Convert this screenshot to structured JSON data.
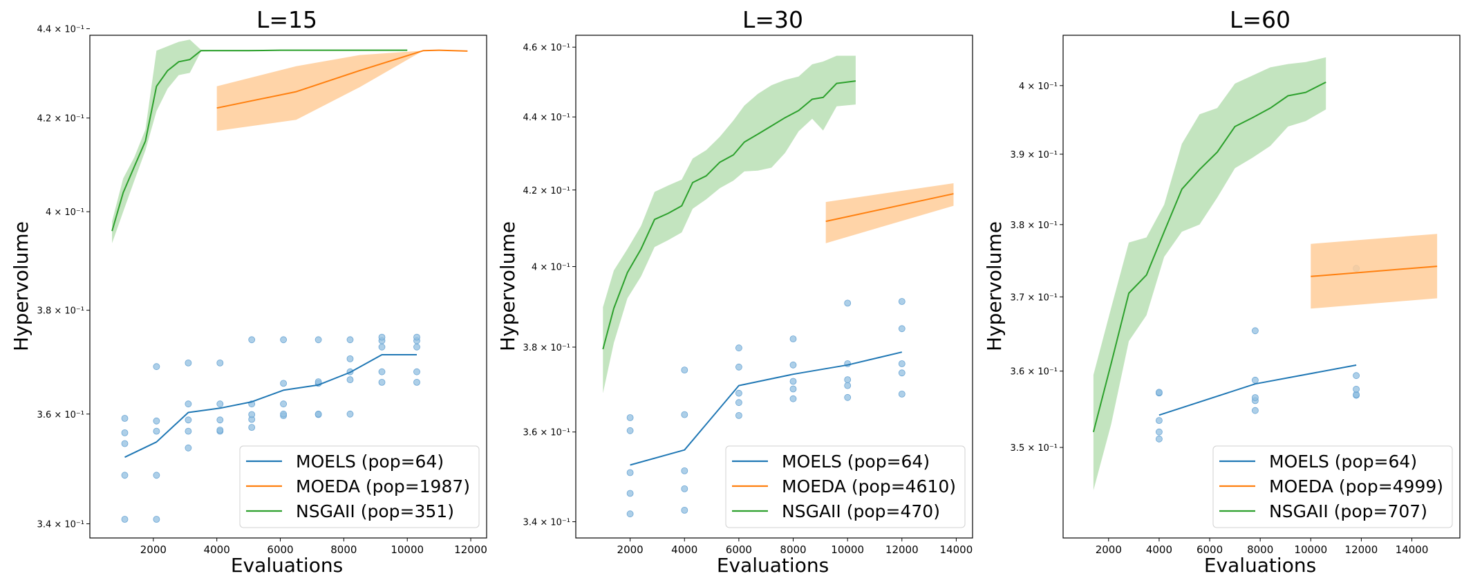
{
  "colors": {
    "moels": "#1f77b4",
    "moeda": "#ff7f0e",
    "nsgaii": "#2ca02c",
    "moeda_band": "#ffcc99",
    "nsgaii_band": "#b9dfb4",
    "moels_points": "#92bfe0"
  },
  "chart_data": [
    {
      "type": "line",
      "title": "L=15",
      "xlabel": "Evaluations",
      "ylabel": "Hypervolume",
      "yscale": "log",
      "xlim": [
        0,
        12500
      ],
      "ylim": [
        0.3375,
        0.4385
      ],
      "xticks": [
        2000,
        4000,
        6000,
        8000,
        10000,
        12000
      ],
      "xtick_labels": [
        "2000",
        "4000",
        "6000",
        "8000",
        "10000",
        "12000"
      ],
      "yticks": [
        0.34,
        0.36,
        0.38,
        0.4,
        0.42,
        0.44
      ],
      "ytick_labels": [
        "3.4 × 10⁻¹",
        "3.6 × 10⁻¹",
        "3.8 × 10⁻¹",
        "4 × 10⁻¹",
        "4.2 × 10⁻¹",
        "4.4 × 10⁻¹"
      ],
      "grid": false,
      "legend_position": "lower-right",
      "legend": [
        "MOELS (pop=64)",
        "MOEDA (pop=1987)",
        "NSGAII (pop=351)"
      ],
      "series": [
        {
          "name": "MOELS (pop=64)",
          "color": "#1f77b4",
          "x": [
            1100,
            2100,
            3100,
            4100,
            5100,
            6100,
            7200,
            8200,
            9200,
            10300
          ],
          "y": [
            0.352,
            0.3548,
            0.3603,
            0.3611,
            0.3623,
            0.3645,
            0.3655,
            0.3679,
            0.3713,
            0.3713
          ],
          "points": [
            [
              1100,
              0.3408
            ],
            [
              1100,
              0.3487
            ],
            [
              1100,
              0.3545
            ],
            [
              1100,
              0.3565
            ],
            [
              1100,
              0.3592
            ],
            [
              2100,
              0.3408
            ],
            [
              2100,
              0.3487
            ],
            [
              2100,
              0.3568
            ],
            [
              2100,
              0.3587
            ],
            [
              2100,
              0.369
            ],
            [
              3100,
              0.3537
            ],
            [
              3100,
              0.3568
            ],
            [
              3100,
              0.3589
            ],
            [
              3100,
              0.3619
            ],
            [
              3100,
              0.3697
            ],
            [
              4100,
              0.3568
            ],
            [
              4100,
              0.357
            ],
            [
              4100,
              0.3589
            ],
            [
              4100,
              0.3619
            ],
            [
              4100,
              0.3697
            ],
            [
              5100,
              0.3575
            ],
            [
              5100,
              0.359
            ],
            [
              5100,
              0.3599
            ],
            [
              5100,
              0.3619
            ],
            [
              5100,
              0.3742
            ],
            [
              6100,
              0.3597
            ],
            [
              6100,
              0.36
            ],
            [
              6100,
              0.3619
            ],
            [
              6100,
              0.3658
            ],
            [
              6100,
              0.3742
            ],
            [
              7200,
              0.3599
            ],
            [
              7200,
              0.36
            ],
            [
              7200,
              0.3658
            ],
            [
              7200,
              0.3661
            ],
            [
              7200,
              0.3742
            ],
            [
              8200,
              0.36
            ],
            [
              8200,
              0.3665
            ],
            [
              8200,
              0.368
            ],
            [
              8200,
              0.3705
            ],
            [
              8200,
              0.3742
            ],
            [
              9200,
              0.366
            ],
            [
              9200,
              0.368
            ],
            [
              9200,
              0.3728
            ],
            [
              9200,
              0.374
            ],
            [
              9200,
              0.3747
            ],
            [
              10300,
              0.366
            ],
            [
              10300,
              0.368
            ],
            [
              10300,
              0.3728
            ],
            [
              10300,
              0.374
            ],
            [
              10300,
              0.3747
            ]
          ]
        },
        {
          "name": "MOEDA (pop=1987)",
          "color": "#ff7f0e",
          "x": [
            4000,
            6500,
            8500,
            10500,
            11000,
            11900
          ],
          "y": [
            0.4222,
            0.4258,
            0.4305,
            0.435,
            0.4351,
            0.4349
          ],
          "lower": [
            0.4172,
            0.4196,
            0.4268,
            0.435,
            0.4351,
            0.4349
          ],
          "upper": [
            0.427,
            0.4315,
            0.434,
            0.435,
            0.4351,
            0.4349
          ]
        },
        {
          "name": "NSGAII (pop=351)",
          "color": "#2ca02c",
          "x": [
            700,
            1050,
            1400,
            1750,
            2100,
            2450,
            2800,
            3150,
            3500,
            3850,
            4200,
            5000,
            6000,
            7000,
            8000,
            9000,
            10000
          ],
          "y": [
            0.396,
            0.404,
            0.4095,
            0.415,
            0.427,
            0.4305,
            0.4325,
            0.433,
            0.435,
            0.435,
            0.435,
            0.435,
            0.4351,
            0.4351,
            0.4351,
            0.4351,
            0.4351
          ],
          "lower": [
            0.3935,
            0.4,
            0.4065,
            0.413,
            0.4215,
            0.4265,
            0.4295,
            0.43,
            0.4348,
            0.4349,
            0.4349,
            0.4349,
            0.435,
            0.435,
            0.435,
            0.435,
            0.435
          ],
          "upper": [
            0.398,
            0.407,
            0.4115,
            0.4175,
            0.435,
            0.436,
            0.437,
            0.4375,
            0.4352,
            0.4352,
            0.4352,
            0.4352,
            0.4352,
            0.4352,
            0.4352,
            0.4352,
            0.4352
          ]
        }
      ]
    },
    {
      "type": "line",
      "title": "L=30",
      "xlabel": "Evaluations",
      "ylabel": "Hypervolume",
      "yscale": "log",
      "xlim": [
        0,
        14600
      ],
      "ylim": [
        0.3365,
        0.4635
      ],
      "xticks": [
        2000,
        4000,
        6000,
        8000,
        10000,
        12000,
        14000
      ],
      "xtick_labels": [
        "2000",
        "4000",
        "6000",
        "8000",
        "10000",
        "12000",
        "14000"
      ],
      "yticks": [
        0.34,
        0.36,
        0.38,
        0.4,
        0.42,
        0.44,
        0.46
      ],
      "ytick_labels": [
        "3.4 × 10⁻¹",
        "3.6 × 10⁻¹",
        "3.8 × 10⁻¹",
        "4 × 10⁻¹",
        "4.2 × 10⁻¹",
        "4.4 × 10⁻¹",
        "4.6 × 10⁻¹"
      ],
      "grid": false,
      "legend_position": "lower-right",
      "legend": [
        "MOELS (pop=64)",
        "MOEDA (pop=4610)",
        "NSGAII (pop=470)"
      ],
      "series": [
        {
          "name": "MOELS (pop=64)",
          "color": "#1f77b4",
          "x": [
            2000,
            4000,
            6000,
            8000,
            10000,
            12000
          ],
          "y": [
            0.3525,
            0.3559,
            0.3708,
            0.3735,
            0.3757,
            0.3788
          ],
          "points": [
            [
              2000,
              0.3417
            ],
            [
              2000,
              0.3462
            ],
            [
              2000,
              0.3508
            ],
            [
              2000,
              0.3603
            ],
            [
              2000,
              0.3633
            ],
            [
              4000,
              0.3425
            ],
            [
              4000,
              0.3472
            ],
            [
              4000,
              0.3512
            ],
            [
              4000,
              0.364
            ],
            [
              4000,
              0.3745
            ],
            [
              6000,
              0.3638
            ],
            [
              6000,
              0.3668
            ],
            [
              6000,
              0.369
            ],
            [
              6000,
              0.3752
            ],
            [
              6000,
              0.3798
            ],
            [
              8000,
              0.3677
            ],
            [
              8000,
              0.37
            ],
            [
              8000,
              0.3718
            ],
            [
              8000,
              0.3757
            ],
            [
              8000,
              0.382
            ],
            [
              10000,
              0.368
            ],
            [
              10000,
              0.3708
            ],
            [
              10000,
              0.3722
            ],
            [
              10000,
              0.376
            ],
            [
              10000,
              0.3908
            ],
            [
              12000,
              0.3688
            ],
            [
              12000,
              0.3738
            ],
            [
              12000,
              0.376
            ],
            [
              12000,
              0.3845
            ],
            [
              12000,
              0.3912
            ]
          ]
        },
        {
          "name": "MOEDA (pop=4610)",
          "color": "#ff7f0e",
          "x": [
            9200,
            13900
          ],
          "y": [
            0.4117,
            0.419
          ],
          "lower": [
            0.406,
            0.4158
          ],
          "upper": [
            0.4168,
            0.4218
          ]
        },
        {
          "name": "NSGAII (pop=470)",
          "color": "#2ca02c",
          "x": [
            1000,
            1400,
            1900,
            2400,
            2900,
            3400,
            3900,
            4300,
            4800,
            5300,
            5800,
            6200,
            6700,
            7200,
            7700,
            8200,
            8700,
            9100,
            9600,
            10300
          ],
          "y": [
            0.3795,
            0.3895,
            0.3985,
            0.4045,
            0.4122,
            0.4138,
            0.4158,
            0.422,
            0.4238,
            0.4275,
            0.4295,
            0.433,
            0.4352,
            0.4375,
            0.4398,
            0.4418,
            0.445,
            0.4455,
            0.4495,
            0.4502
          ],
          "lower": [
            0.369,
            0.381,
            0.392,
            0.3975,
            0.405,
            0.4068,
            0.4088,
            0.415,
            0.4175,
            0.4205,
            0.4225,
            0.425,
            0.4252,
            0.426,
            0.43,
            0.436,
            0.4395,
            0.4362,
            0.443,
            0.4435
          ],
          "upper": [
            0.3898,
            0.399,
            0.4045,
            0.4105,
            0.4195,
            0.4212,
            0.4228,
            0.4285,
            0.4308,
            0.4345,
            0.439,
            0.4432,
            0.4465,
            0.449,
            0.4505,
            0.4515,
            0.455,
            0.4558,
            0.4575,
            0.4575
          ]
        }
      ]
    },
    {
      "type": "line",
      "title": "L=60",
      "xlabel": "Evaluations",
      "ylabel": "Hypervolume",
      "yscale": "log",
      "xlim": [
        200,
        15900
      ],
      "ylim": [
        0.3385,
        0.4075
      ],
      "xticks": [
        2000,
        4000,
        6000,
        8000,
        10000,
        12000,
        14000
      ],
      "xtick_labels": [
        "2000",
        "4000",
        "6000",
        "8000",
        "10000",
        "12000",
        "14000"
      ],
      "yticks": [
        0.35,
        0.36,
        0.37,
        0.38,
        0.39,
        0.4
      ],
      "ytick_labels": [
        "3.5 × 10⁻¹",
        "3.6 × 10⁻¹",
        "3.7 × 10⁻¹",
        "3.8 × 10⁻¹",
        "3.9 × 10⁻¹",
        "4 × 10⁻¹"
      ],
      "grid": false,
      "legend_position": "lower-right",
      "legend": [
        "MOELS (pop=64)",
        "MOEDA (pop=4999)",
        "NSGAII (pop=707)"
      ],
      "series": [
        {
          "name": "MOELS (pop=64)",
          "color": "#1f77b4",
          "x": [
            4000,
            7800,
            11800
          ],
          "y": [
            0.3542,
            0.3583,
            0.3608
          ],
          "points": [
            [
              4000,
              0.3511
            ],
            [
              4000,
              0.352
            ],
            [
              4000,
              0.3535
            ],
            [
              4000,
              0.3571
            ],
            [
              4000,
              0.3572
            ],
            [
              7800,
              0.3548
            ],
            [
              7800,
              0.3561
            ],
            [
              7800,
              0.3565
            ],
            [
              7800,
              0.3588
            ],
            [
              7800,
              0.3654
            ],
            [
              11800,
              0.3568
            ],
            [
              11800,
              0.3569
            ],
            [
              11800,
              0.3576
            ],
            [
              11800,
              0.3594
            ],
            [
              11800,
              0.3739
            ]
          ]
        },
        {
          "name": "MOEDA (pop=4999)",
          "color": "#ff7f0e",
          "x": [
            10000,
            15000
          ],
          "y": [
            0.3728,
            0.3742
          ],
          "lower": [
            0.3684,
            0.3698
          ],
          "upper": [
            0.3773,
            0.3787
          ]
        },
        {
          "name": "NSGAII (pop=707)",
          "color": "#2ca02c",
          "x": [
            1400,
            2100,
            2800,
            3500,
            4200,
            4900,
            5600,
            6300,
            7000,
            7700,
            8400,
            9100,
            9800,
            10600
          ],
          "y": [
            0.352,
            0.361,
            0.3705,
            0.373,
            0.379,
            0.385,
            0.3878,
            0.3903,
            0.394,
            0.3953,
            0.3967,
            0.3985,
            0.399,
            0.4005
          ],
          "lower": [
            0.3445,
            0.353,
            0.364,
            0.3675,
            0.3755,
            0.379,
            0.38,
            0.3838,
            0.388,
            0.3895,
            0.3912,
            0.394,
            0.3948,
            0.3965
          ],
          "upper": [
            0.3595,
            0.3685,
            0.3775,
            0.3782,
            0.3828,
            0.3915,
            0.3958,
            0.3967,
            0.4003,
            0.4015,
            0.4027,
            0.4032,
            0.4035,
            0.4042
          ]
        }
      ]
    }
  ]
}
